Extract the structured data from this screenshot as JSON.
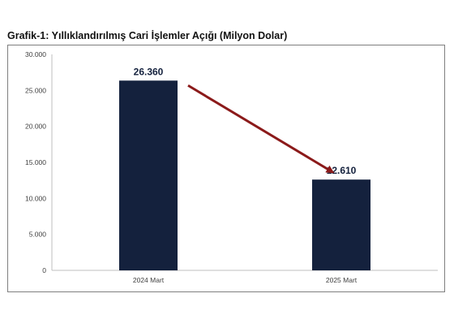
{
  "title": "Grafik-1: Yıllıklandırılmış Cari İşlemler Açığı (Milyon Dolar)",
  "colors": {
    "bar": "#14213d",
    "arrow": "#8b1a1a",
    "axis": "#bfbfbf",
    "text": "#404040"
  },
  "chart_data": {
    "type": "bar",
    "title": "Grafik-1: Yıllıklandırılmış Cari İşlemler Açığı (Milyon Dolar)",
    "categories": [
      "2024 Mart",
      "2025 Mart"
    ],
    "values": [
      26360,
      12610
    ],
    "value_labels": [
      "26.360",
      "12.610"
    ],
    "ylim": [
      0,
      30000
    ],
    "yticks": [
      0,
      5000,
      10000,
      15000,
      20000,
      25000,
      30000
    ],
    "ytick_labels": [
      "0",
      "5.000",
      "10.000",
      "15.000",
      "20.000",
      "25.000",
      "30.000"
    ],
    "xlabel": "",
    "ylabel": "",
    "grid": false,
    "legend": "none",
    "annotation": "arrow-from-first-to-second-bar"
  }
}
